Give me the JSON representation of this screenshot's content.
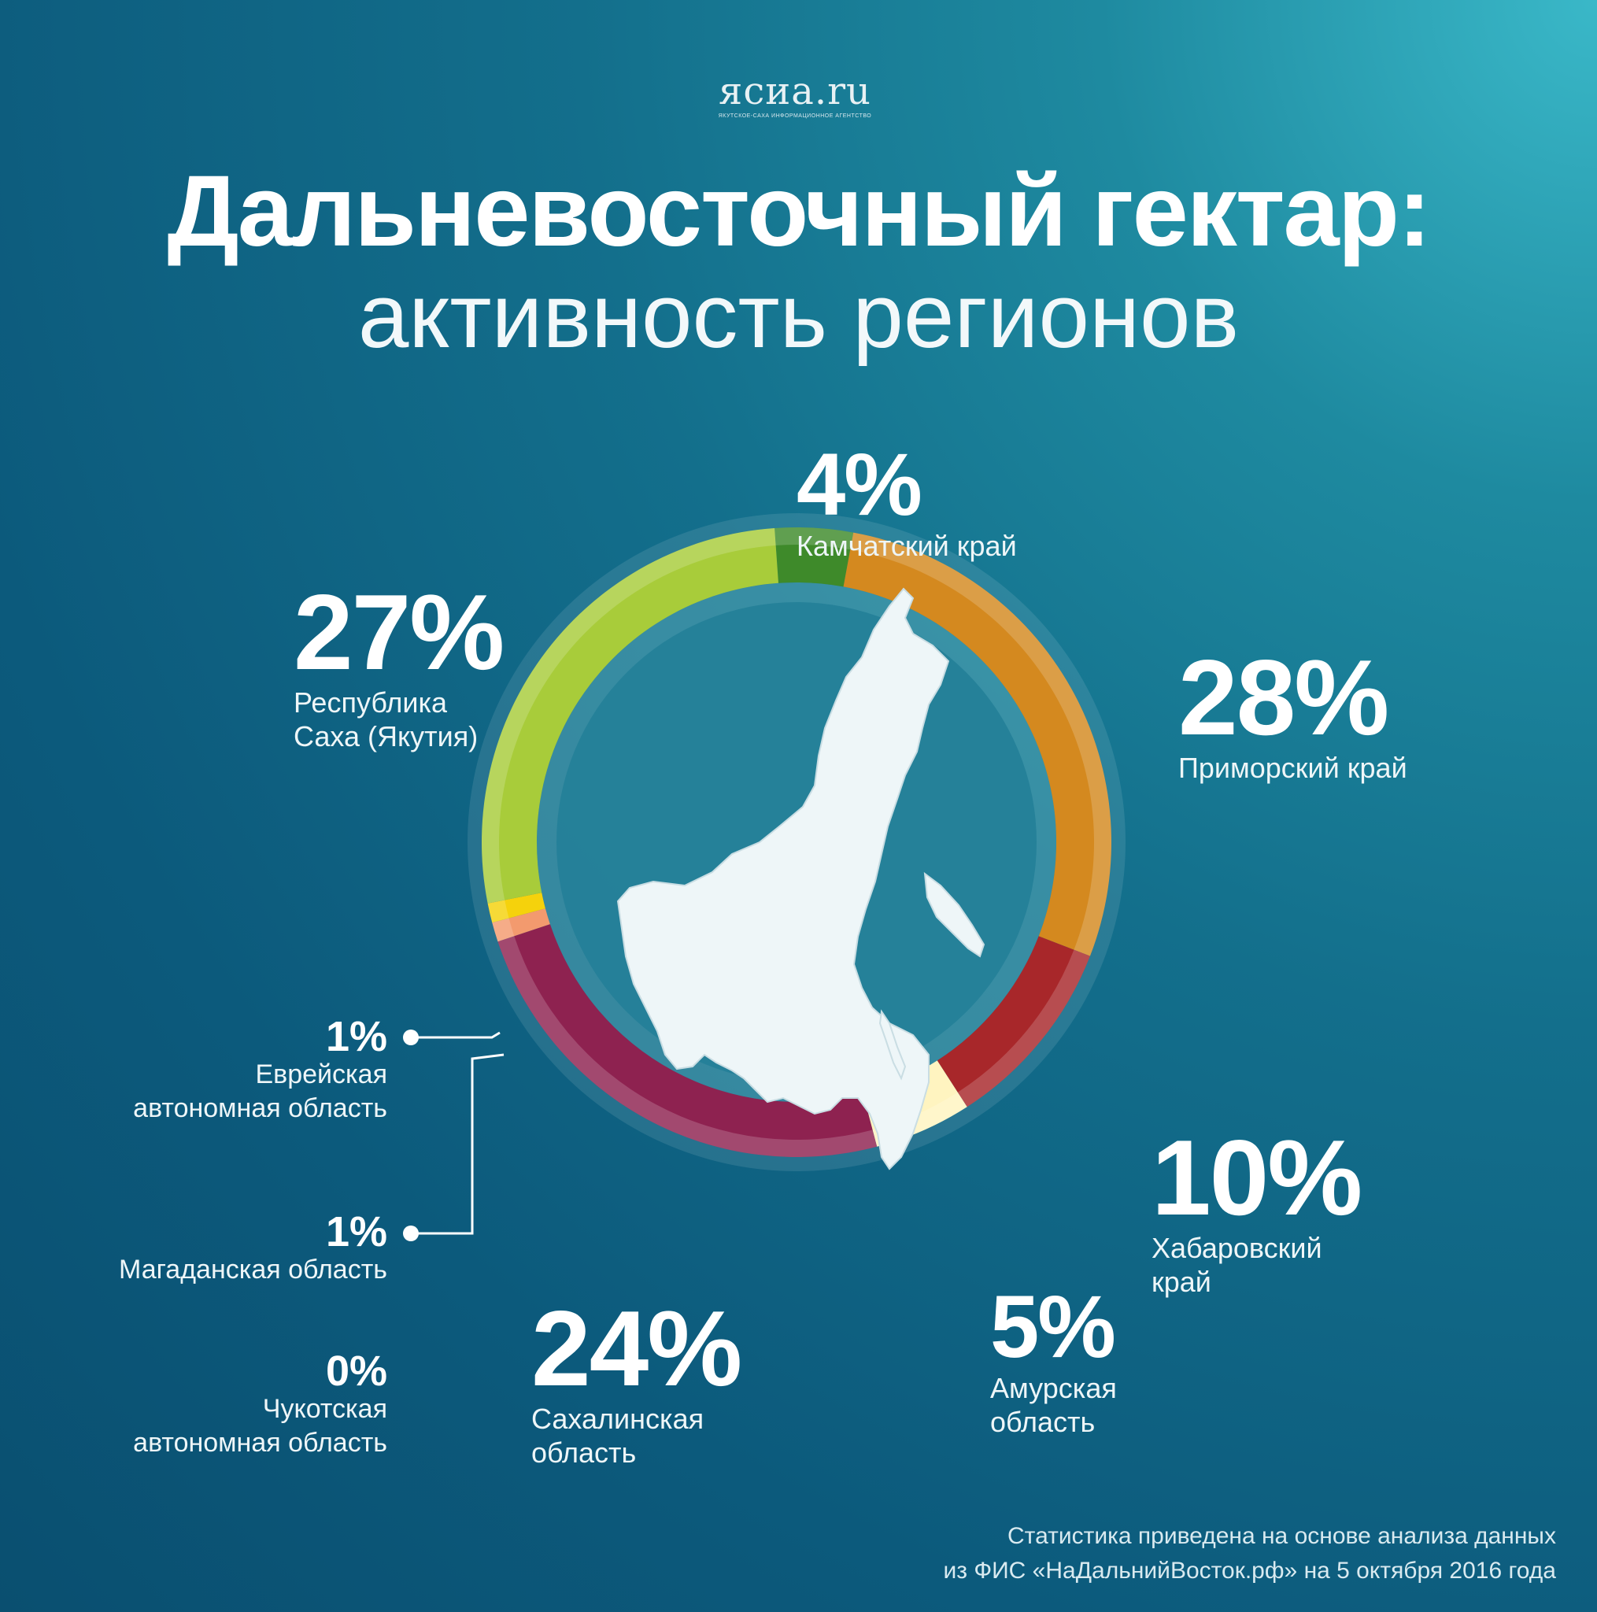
{
  "logo": {
    "name": "ясиа.ru",
    "tagline": "ЯКУТСКОЕ-САХА ИНФОРМАЦИОННОЕ АГЕНТСТВО"
  },
  "title": "Дальневосточный гектар:",
  "subtitle": "активность регионов",
  "chart_data": {
    "type": "pie",
    "title": "Дальневосточный гектар: активность регионов",
    "unit": "%",
    "slices": [
      {
        "label": "Камчатский край",
        "value": 4,
        "value_label": "4%",
        "color": "#3e8a2a"
      },
      {
        "label": "Приморский край",
        "value": 28,
        "value_label": "28%",
        "color": "#d4891f"
      },
      {
        "label": "Хабаровский край",
        "value": 10,
        "value_label": "10%",
        "color": "#a8272a"
      },
      {
        "label": "Амурская область",
        "value": 5,
        "value_label": "5%",
        "color": "#fff4c0"
      },
      {
        "label": "Сахалинская область",
        "value": 24,
        "value_label": "24%",
        "color": "#8e2250"
      },
      {
        "label": "Магаданская область",
        "value": 1,
        "value_label": "1%",
        "color": "#f39a6e"
      },
      {
        "label": "Еврейская автономная область",
        "value": 1,
        "value_label": "1%",
        "color": "#f5d20c"
      },
      {
        "label": "Чукотская автономная область",
        "value": 0,
        "value_label": "0%",
        "color": "#cccccc"
      },
      {
        "label": "Республика Саха (Якутия)",
        "value": 27,
        "value_label": "27%",
        "color": "#a8cc3a"
      }
    ]
  },
  "labels": {
    "kamchatka": {
      "pct": "4%",
      "line1": "Камчатский край"
    },
    "primorsky": {
      "pct": "28%",
      "line1": "Приморский край"
    },
    "sakha": {
      "pct": "27%",
      "line1": "Республика",
      "line2": "Саха (Якутия)"
    },
    "khabarovsk": {
      "pct": "10%",
      "line1": "Хабаровский",
      "line2": "край"
    },
    "amur": {
      "pct": "5%",
      "line1": "Амурская",
      "line2": "область"
    },
    "sakhalin": {
      "pct": "24%",
      "line1": "Сахалинская",
      "line2": "область"
    },
    "jewish": {
      "pct": "1%",
      "line1": "Еврейская",
      "line2": "автономная область"
    },
    "magadan": {
      "pct": "1%",
      "line1": "Магаданская область"
    },
    "chukotka": {
      "pct": "0%",
      "line1": "Чукотская",
      "line2": "автономная область"
    }
  },
  "footnote": {
    "line1": "Статистика приведена на основе анализа данных",
    "line2": "из ФИС «НаДальнийВосток.рф» на 5 октября 2016 года"
  }
}
